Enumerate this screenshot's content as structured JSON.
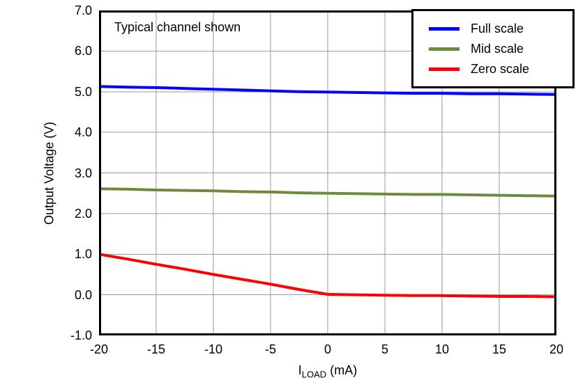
{
  "colors": {
    "background": "#FFFFFF",
    "plot_border": "#000000",
    "gridline": "#999999",
    "text": "#000000",
    "full_scale": "#0000FF",
    "mid_scale": "#6E8B3D",
    "zero_scale": "#FF0000"
  },
  "chart_data": {
    "type": "line",
    "title": "",
    "annotation": "Typical channel shown",
    "ylabel": "Output Voltage (V)",
    "xlabel_main": "I",
    "xlabel_sub": "LOAD",
    "xlabel_unit": " (mA)",
    "xlim": [
      -20,
      20
    ],
    "ylim": [
      -1,
      7
    ],
    "grid": true,
    "legend_position": "top-right",
    "xticks": [
      -20,
      -15,
      -10,
      -5,
      0,
      5,
      10,
      15,
      20
    ],
    "xtick_labels": [
      "-20",
      "-15",
      "-10",
      "-5",
      "0",
      "5",
      "10",
      "15",
      "20"
    ],
    "yticks": [
      -1,
      0,
      1,
      2,
      3,
      4,
      5,
      6,
      7
    ],
    "ytick_labels": [
      "-1.0",
      "0.0",
      "1.0",
      "2.0",
      "3.0",
      "4.0",
      "5.0",
      "6.0",
      "7.0"
    ],
    "x": [
      -20,
      -17.5,
      -15,
      -12.5,
      -10,
      -7.5,
      -5,
      -2.5,
      0,
      2.5,
      5,
      7.5,
      10,
      12.5,
      15,
      17.5,
      20
    ],
    "series": [
      {
        "name": "Full scale",
        "color": "#0000FF",
        "values": [
          5.13,
          5.11,
          5.1,
          5.08,
          5.06,
          5.04,
          5.02,
          5.0,
          4.99,
          4.98,
          4.97,
          4.96,
          4.96,
          4.95,
          4.95,
          4.94,
          4.93
        ]
      },
      {
        "name": "Mid scale",
        "color": "#6E8B3D",
        "values": [
          2.61,
          2.6,
          2.58,
          2.57,
          2.56,
          2.54,
          2.53,
          2.51,
          2.5,
          2.49,
          2.48,
          2.47,
          2.47,
          2.46,
          2.45,
          2.44,
          2.43
        ]
      },
      {
        "name": "Zero scale",
        "color": "#FF0000",
        "values": [
          1.0,
          0.88,
          0.75,
          0.63,
          0.5,
          0.38,
          0.26,
          0.13,
          0.01,
          0.0,
          -0.01,
          -0.02,
          -0.02,
          -0.03,
          -0.04,
          -0.04,
          -0.05
        ]
      }
    ]
  }
}
